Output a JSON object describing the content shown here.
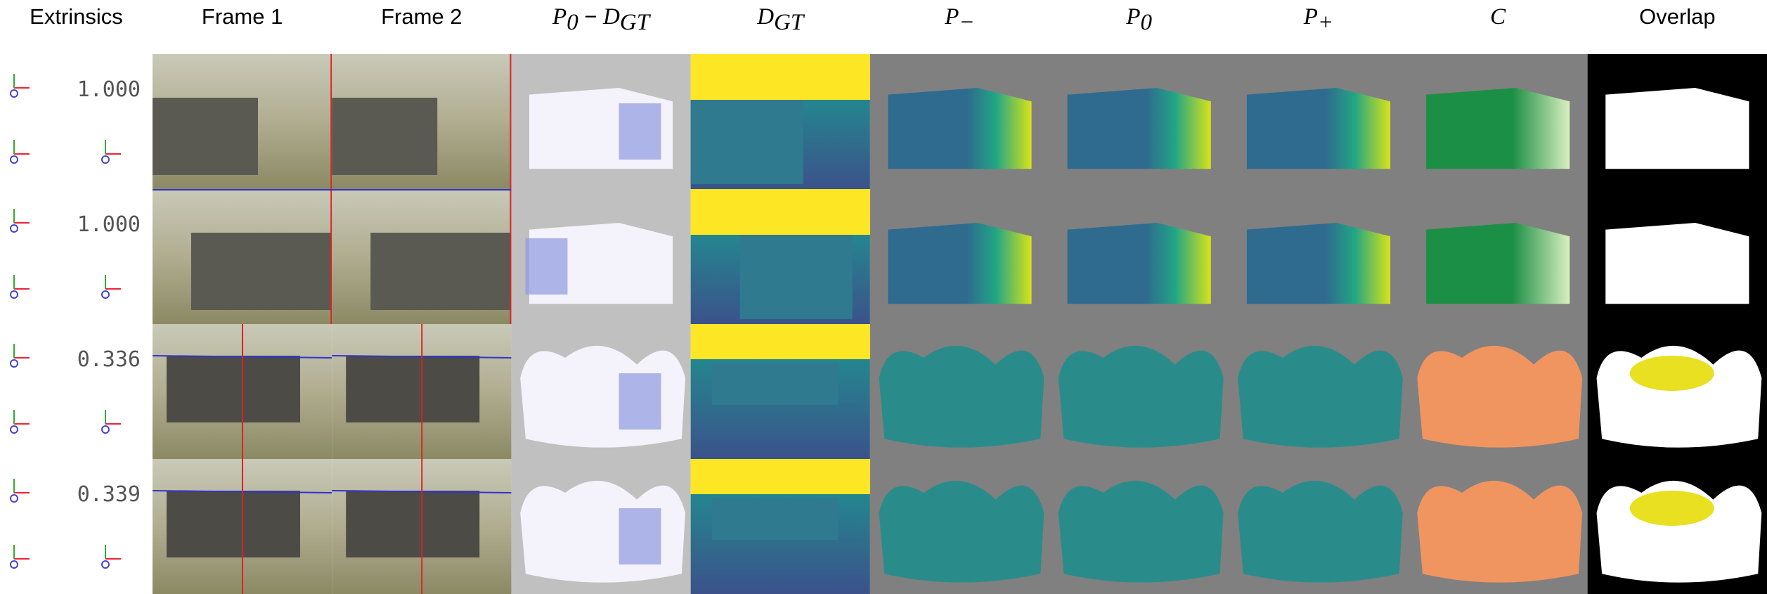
{
  "header": {
    "columns": [
      [
        {
          "text": "Extrinsics"
        }
      ],
      [
        {
          "text": "Frame 1"
        }
      ],
      [
        {
          "text": "Frame 2"
        }
      ],
      [
        {
          "math": "P"
        },
        {
          "sub": "0"
        },
        {
          "text": " − "
        },
        {
          "math": "D"
        },
        {
          "sub": "GT"
        }
      ],
      [
        {
          "math": "D"
        },
        {
          "sub": "GT"
        }
      ],
      [
        {
          "math": "P"
        },
        {
          "sub": "−"
        }
      ],
      [
        {
          "math": "P"
        },
        {
          "sub": "0"
        }
      ],
      [
        {
          "math": "P"
        },
        {
          "sub": "+"
        }
      ],
      [
        {
          "math": "C"
        }
      ],
      [
        {
          "text": "Overlap"
        }
      ]
    ]
  },
  "rows": [
    {
      "extrinsic": "1.000"
    },
    {
      "extrinsic": "1.000"
    },
    {
      "extrinsic": "0.336"
    },
    {
      "extrinsic": "0.339"
    }
  ]
}
